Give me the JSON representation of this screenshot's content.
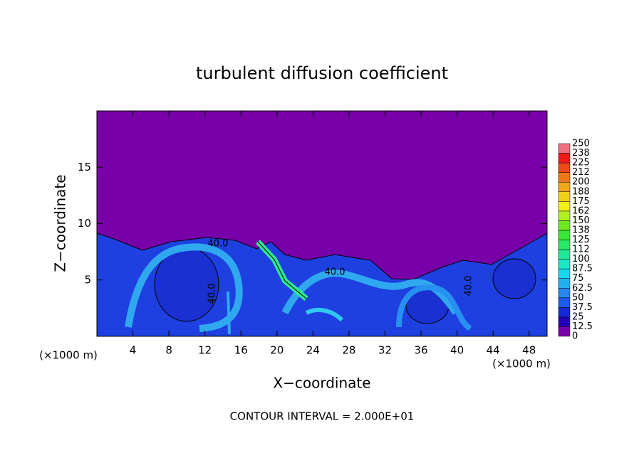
{
  "chart_data": {
    "type": "heatmap",
    "title": "turbulent diffusion coefficient",
    "x_label": "X−coordinate",
    "y_label": "Z−coordinate",
    "x_unit": "(×1000 m)",
    "xlim": [
      0,
      50
    ],
    "xticks": [
      4,
      8,
      12,
      16,
      20,
      24,
      28,
      32,
      36,
      40,
      44,
      48
    ],
    "ylim": [
      0,
      20
    ],
    "yticks": [
      5,
      10,
      15
    ],
    "annotations": [
      "40.0",
      "40.0",
      "40.0",
      "40.0"
    ],
    "footnote": "CONTOUR INTERVAL = 2.000E+01",
    "colorbar": {
      "levels": [
        0,
        12.5,
        25,
        37.5,
        50,
        62.5,
        75,
        87.5,
        100,
        {
          "value": 112.5,
          "label": "112"
        },
        125,
        {
          "value": 137.5,
          "label": "138"
        },
        150,
        {
          "value": 162.5,
          "label": "162"
        },
        175,
        {
          "value": 187.5,
          "label": "188"
        },
        200,
        {
          "value": 212.5,
          "label": "212"
        },
        225,
        {
          "value": 237.5,
          "label": "238"
        },
        250
      ],
      "colors": [
        "#7800a8",
        "#2400b8",
        "#1428d8",
        "#1e5af0",
        "#2888f0",
        "#20b0f0",
        "#18d8f0",
        "#18e8c8",
        "#20e898",
        "#28e868",
        "#38e838",
        "#70e820",
        "#b0f020",
        "#f0f018",
        "#f0d018",
        "#f0a818",
        "#f07818",
        "#f04818",
        "#f01818",
        "#f07080"
      ]
    }
  }
}
